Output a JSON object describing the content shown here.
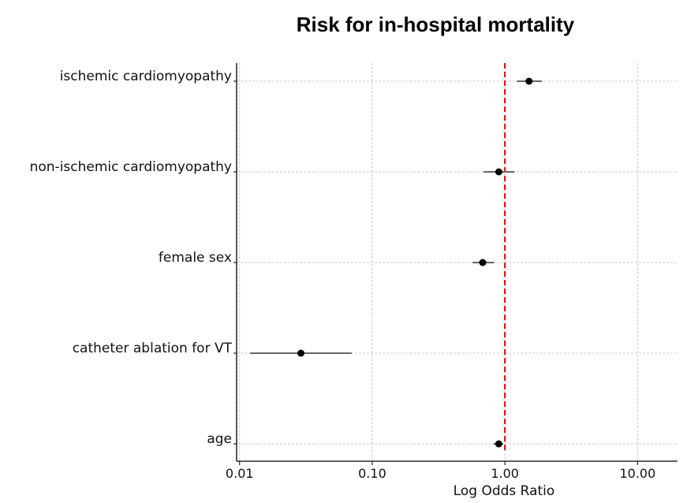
{
  "chart_data": {
    "type": "forest",
    "title": "Risk for in-hospital mortality",
    "xlabel": "Log Odds Ratio",
    "ylabel": "",
    "xscale": "log",
    "xlim": [
      0.0095,
      20
    ],
    "xticks": [
      0.01,
      0.1,
      1.0,
      10.0
    ],
    "xtick_labels": [
      "0.01",
      "0.10",
      "1.00",
      "10.00"
    ],
    "grid": true,
    "reference_line": {
      "x": 1.0,
      "color": "#e00000",
      "style": "dashed"
    },
    "colors": {
      "point": "#000000",
      "ci": "#666666",
      "grid": "#bbbbbb",
      "axis": "#000000"
    },
    "rows": [
      {
        "label": "ischemic cardiomyopathy",
        "or": 1.52,
        "ci_low": 1.23,
        "ci_high": 1.9
      },
      {
        "label": "non-ischemic cardiomyopathy",
        "or": 0.9,
        "ci_low": 0.69,
        "ci_high": 1.18
      },
      {
        "label": "female sex",
        "or": 0.68,
        "ci_low": 0.57,
        "ci_high": 0.83
      },
      {
        "label": "catheter ablation for VT",
        "or": 0.029,
        "ci_low": 0.012,
        "ci_high": 0.07
      },
      {
        "label": "age",
        "or": 0.9,
        "ci_low": 0.82,
        "ci_high": 0.97
      }
    ]
  }
}
